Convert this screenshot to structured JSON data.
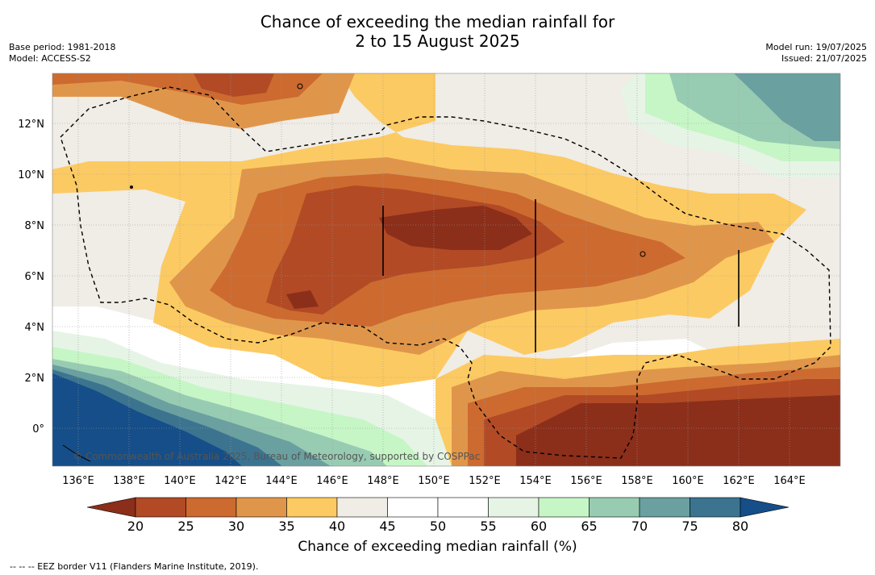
{
  "title": {
    "line1": "Chance of exceeding the median rainfall for",
    "line2": "2 to 15 August 2025"
  },
  "meta": {
    "base_period": "Base period: 1981-2018",
    "model": "Model: ACCESS-S2",
    "model_run": "Model run: 19/07/2025",
    "issued": "Issued: 21/07/2025"
  },
  "map": {
    "lon_labels": [
      "136°E",
      "138°E",
      "140°E",
      "142°E",
      "144°E",
      "146°E",
      "148°E",
      "150°E",
      "152°E",
      "154°E",
      "156°E",
      "158°E",
      "160°E",
      "162°E",
      "164°E"
    ],
    "lat_labels": [
      "12°N",
      "10°N",
      "8°N",
      "6°N",
      "4°N",
      "2°N",
      "0°"
    ],
    "copyright": "© Commonwealth of Australia 2025, Bureau of Meteorology, supported by COSPPac"
  },
  "colorbar": {
    "ticks": [
      "20",
      "25",
      "30",
      "35",
      "40",
      "45",
      "50",
      "55",
      "60",
      "65",
      "70",
      "75",
      "80"
    ],
    "colors": [
      "#8b2e1a",
      "#b14a25",
      "#cc6a30",
      "#e0964a",
      "#fcca62",
      "#f0ece6",
      "#ffffff",
      "#ffffff",
      "#e6f4e6",
      "#c6f6c6",
      "#98ccb2",
      "#6aa0a0",
      "#3c7490",
      "#154e88"
    ],
    "title": "Chance of exceeding median rainfall (%)"
  },
  "footnote": "--  --  -- EEZ border V11 (Flanders Marine Institute, 2019)."
}
